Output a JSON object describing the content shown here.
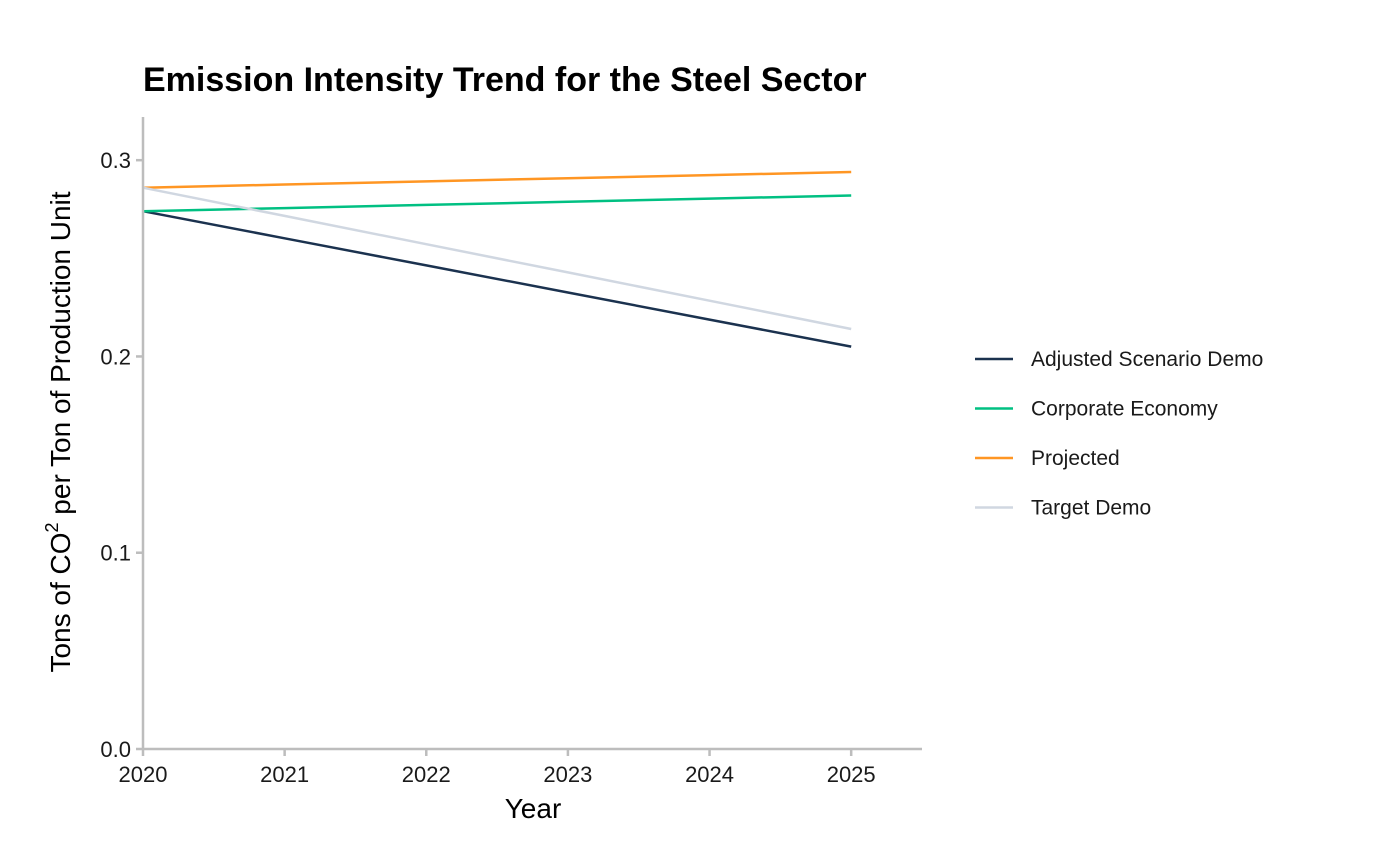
{
  "chart_data": {
    "type": "line",
    "title": "Emission Intensity Trend for the Steel Sector",
    "xlabel": "Year",
    "ylabel": {
      "prefix": "Tons of CO",
      "superscript": "2",
      "suffix": " per Ton of Production Unit"
    },
    "x": [
      2020,
      2021,
      2022,
      2023,
      2024,
      2025
    ],
    "xlim": [
      2020,
      2025.5
    ],
    "ylim": [
      0,
      0.322
    ],
    "x_ticks": [
      "2020",
      "2021",
      "2022",
      "2023",
      "2024",
      "2025"
    ],
    "y_ticks": [
      {
        "value": 0.0,
        "label": "0.0"
      },
      {
        "value": 0.1,
        "label": "0.1"
      },
      {
        "value": 0.2,
        "label": "0.2"
      },
      {
        "value": 0.3,
        "label": "0.3"
      }
    ],
    "grid": false,
    "legend_position": "right",
    "series": [
      {
        "name": "Adjusted Scenario Demo",
        "color": "#1b324f",
        "values": [
          0.274,
          0.2602,
          0.2464,
          0.2326,
          0.2188,
          0.205
        ]
      },
      {
        "name": "Corporate Economy",
        "color": "#00c082",
        "values": [
          0.274,
          0.2756,
          0.2772,
          0.2788,
          0.2804,
          0.282
        ]
      },
      {
        "name": "Projected",
        "color": "#ff9623",
        "values": [
          0.286,
          0.2876,
          0.2892,
          0.2908,
          0.2924,
          0.294
        ]
      },
      {
        "name": "Target Demo",
        "color": "#d0d7e1",
        "values": [
          0.286,
          0.2716,
          0.2572,
          0.2428,
          0.2284,
          0.214
        ]
      }
    ]
  }
}
